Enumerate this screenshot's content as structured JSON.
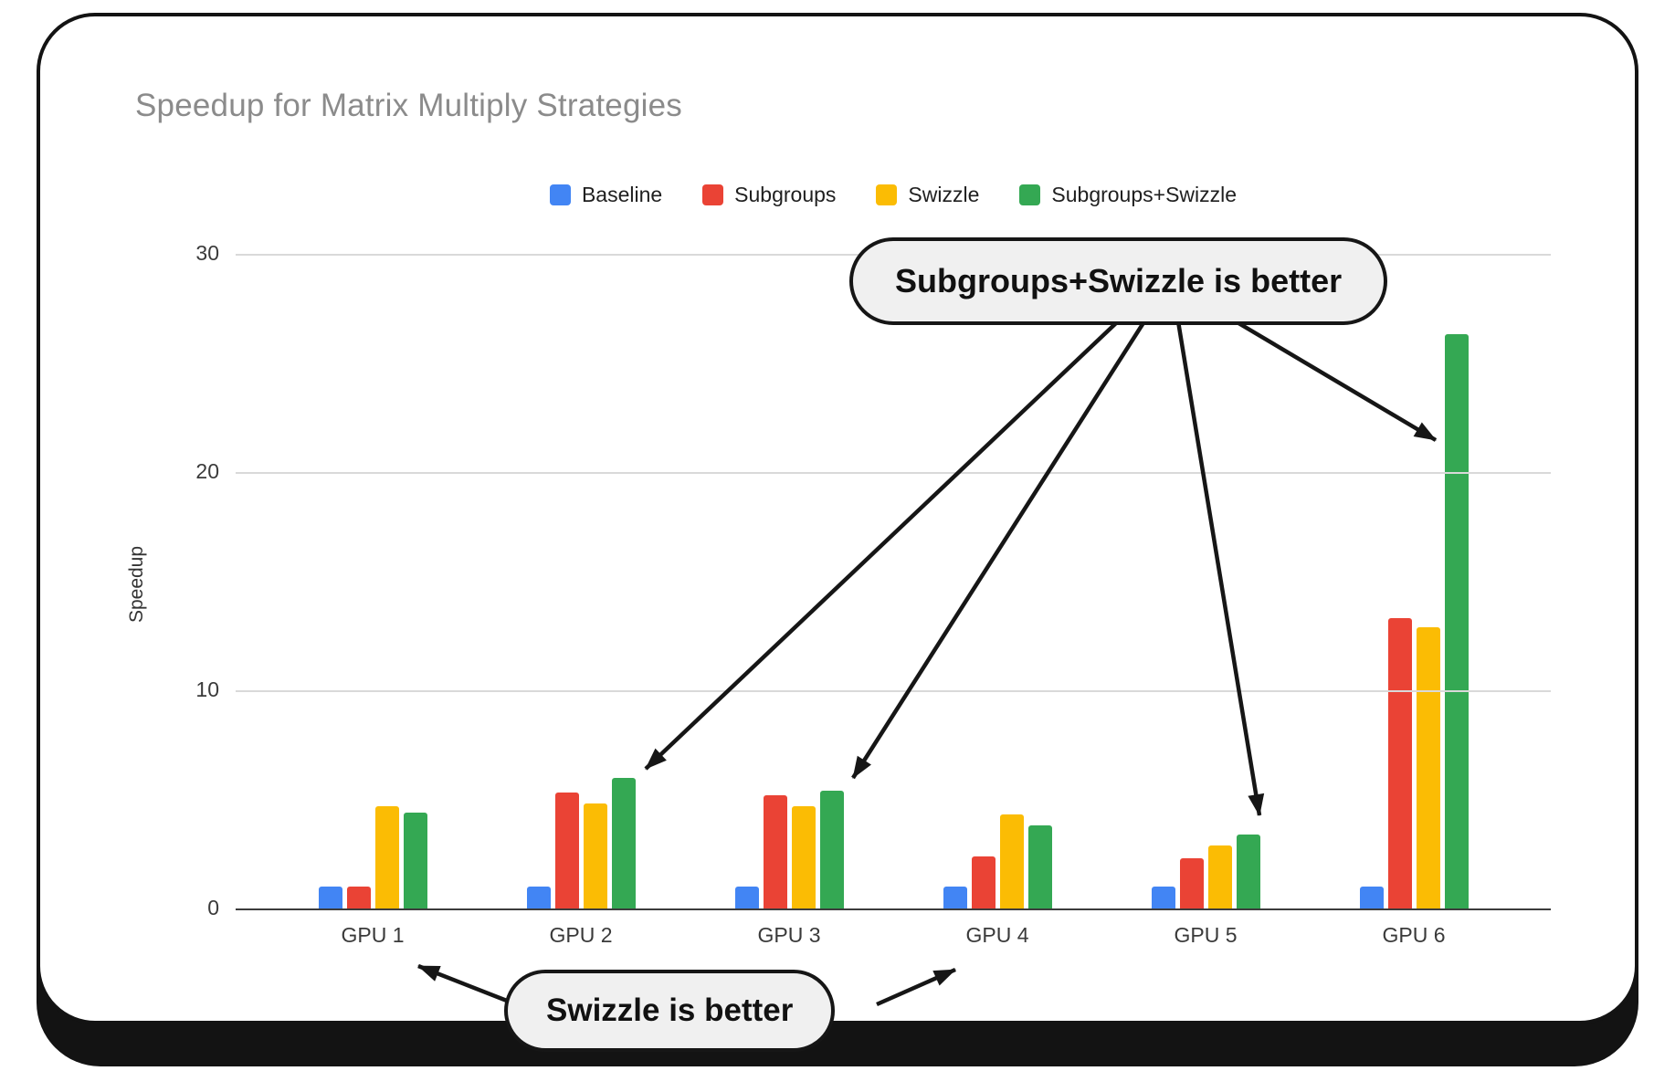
{
  "chart_data": {
    "type": "bar",
    "title": "Speedup for Matrix Multiply Strategies",
    "categories": [
      "GPU 1",
      "GPU 2",
      "GPU 3",
      "GPU 4",
      "GPU 5",
      "GPU 6"
    ],
    "series": [
      {
        "name": "Baseline",
        "color": "#4285F4",
        "values": [
          1.0,
          1.0,
          1.0,
          1.0,
          1.0,
          1.0
        ]
      },
      {
        "name": "Subgroups",
        "color": "#EA4335",
        "values": [
          1.0,
          5.3,
          5.2,
          2.4,
          2.3,
          13.3
        ]
      },
      {
        "name": "Swizzle",
        "color": "#FBBC04",
        "values": [
          4.7,
          4.8,
          4.7,
          4.3,
          2.9,
          12.9
        ]
      },
      {
        "name": "Subgroups+Swizzle",
        "color": "#34A853",
        "values": [
          4.4,
          6.0,
          5.4,
          3.8,
          3.4,
          26.3
        ]
      }
    ],
    "xlabel": "",
    "ylabel": "Speedup",
    "ylim": [
      0,
      30
    ],
    "yticks": [
      0,
      10,
      20,
      30
    ],
    "grid": true,
    "legend_position": "top"
  },
  "annotations": {
    "top": {
      "label": "Subgroups+Swizzle is better"
    },
    "bottom": {
      "label": "Swizzle is better"
    }
  },
  "style": {
    "arrow_color": "#161616",
    "callout_bg": "#f0f0f0",
    "grid_color": "#d9d9d9",
    "title_color": "#8b8b8b"
  }
}
